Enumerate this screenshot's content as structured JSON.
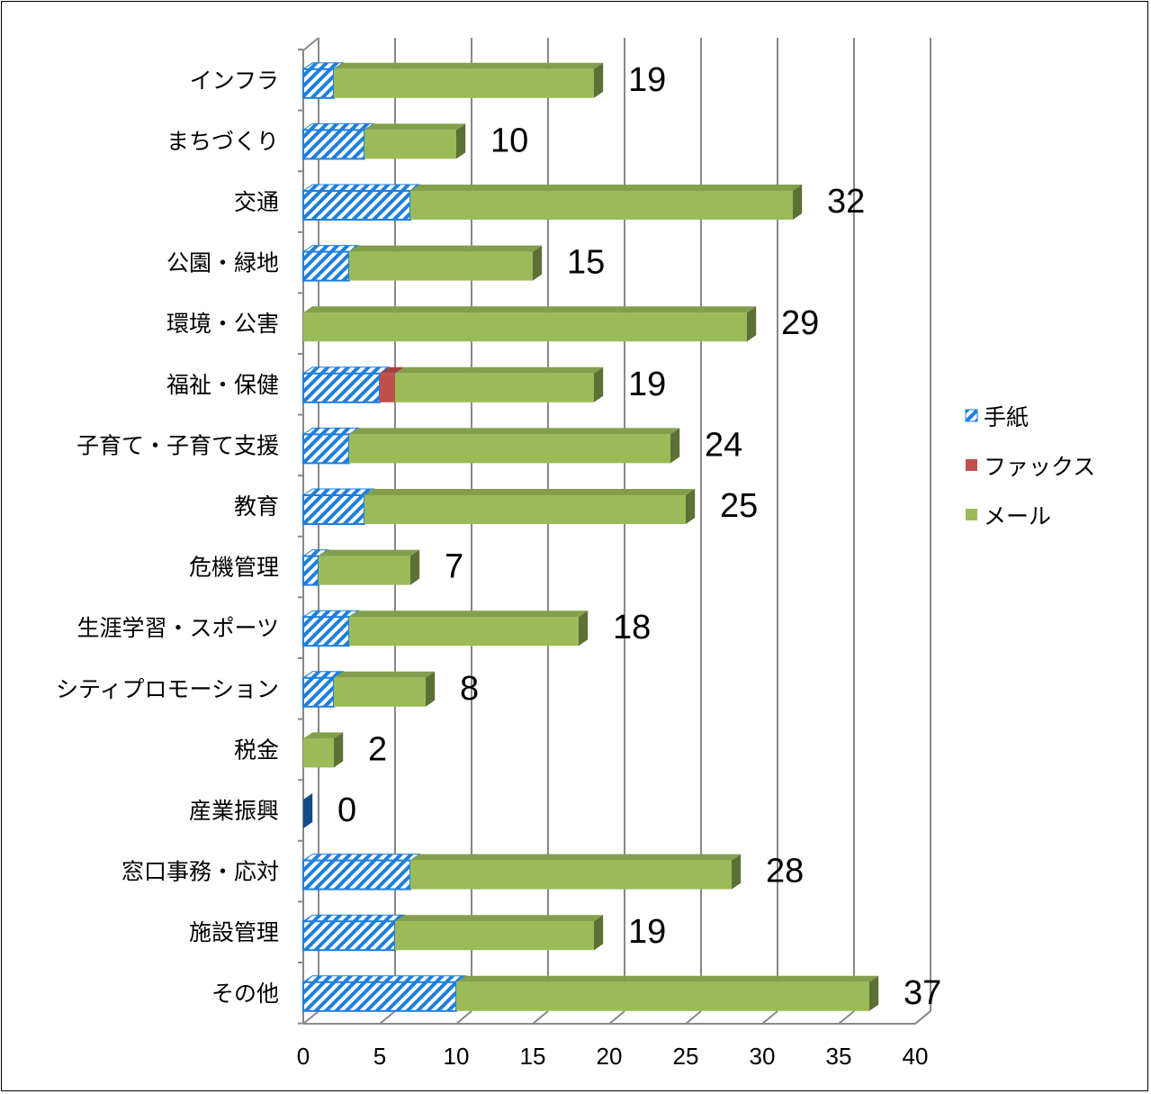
{
  "chart_data": {
    "type": "bar",
    "orientation": "horizontal",
    "stacked": true,
    "three_d": true,
    "title": "",
    "xlabel": "",
    "ylabel": "",
    "xlim": [
      0,
      40
    ],
    "x_ticks": [
      "0",
      "5",
      "10",
      "15",
      "20",
      "25",
      "30",
      "35",
      "40"
    ],
    "grid": true,
    "legend_position": "right",
    "categories": [
      "インフラ",
      "まちづくり",
      "交通",
      "公園・緑地",
      "環境・公害",
      "福祉・保健",
      "子育て・子育て支援",
      "教育",
      "危機管理",
      "生涯学習・スポーツ",
      "シティプロモーション",
      "税金",
      "産業振興",
      "窓口事務・応対",
      "施設管理",
      "その他"
    ],
    "series": [
      {
        "name": "手紙",
        "values": [
          2,
          4,
          7,
          3,
          0,
          5,
          3,
          4,
          1,
          3,
          2,
          0,
          0,
          7,
          6,
          10
        ],
        "color": "#1f7fdc",
        "pattern": "diagonal-hatch"
      },
      {
        "name": "ファックス",
        "values": [
          0,
          0,
          0,
          0,
          0,
          1,
          0,
          0,
          0,
          0,
          0,
          0,
          0,
          0,
          0,
          0
        ],
        "color": "#c0504d"
      },
      {
        "name": "メール",
        "values": [
          17,
          6,
          25,
          12,
          29,
          13,
          21,
          21,
          6,
          15,
          6,
          2,
          0,
          21,
          13,
          27
        ],
        "color": "#9bbb59"
      }
    ],
    "totals": [
      "19",
      "10",
      "32",
      "15",
      "29",
      "19",
      "24",
      "25",
      "7",
      "18",
      "8",
      "2",
      "0",
      "28",
      "19",
      "37"
    ]
  }
}
